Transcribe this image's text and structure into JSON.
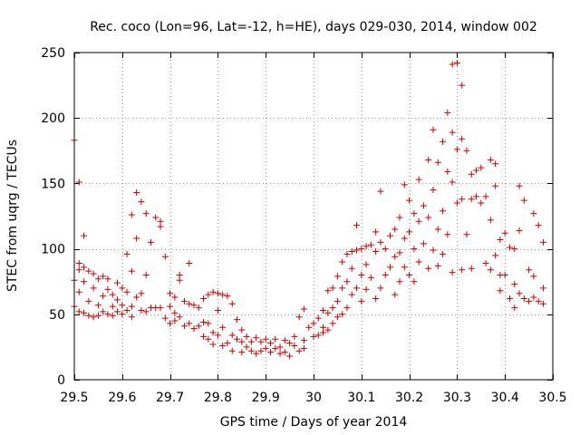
{
  "chart_data": {
    "type": "scatter",
    "title": "Rec. coco (Lon=96, Lat=-12, h=HE), days 029-030, 2014, window 002",
    "xlabel": "GPS time / Days of year 2014",
    "ylabel": "STEC from uqrg / TECUs",
    "xlim": [
      29.5,
      30.5
    ],
    "ylim": [
      0,
      250
    ],
    "x_ticks": [
      29.5,
      29.6,
      29.7,
      29.8,
      29.9,
      30,
      30.1,
      30.2,
      30.3,
      30.4,
      30.5
    ],
    "x_tick_labels": [
      "29.5",
      "29.6",
      "29.7",
      "29.8",
      "29.9",
      "30",
      "30.1",
      "30.2",
      "30.3",
      "30.4",
      "30.5"
    ],
    "y_ticks": [
      0,
      50,
      100,
      150,
      200,
      250
    ],
    "y_tick_labels": [
      "0",
      "50",
      "100",
      "150",
      "200",
      "250"
    ],
    "grid": true,
    "marker": "plus",
    "color": "#cc0000",
    "points": [
      [
        29.5,
        183
      ],
      [
        29.5,
        76
      ],
      [
        29.5,
        56
      ],
      [
        29.51,
        151
      ],
      [
        29.51,
        89
      ],
      [
        29.51,
        84
      ],
      [
        29.51,
        67
      ],
      [
        29.51,
        52
      ],
      [
        29.52,
        110
      ],
      [
        29.52,
        86
      ],
      [
        29.52,
        75
      ],
      [
        29.52,
        51
      ],
      [
        29.53,
        83
      ],
      [
        29.53,
        60
      ],
      [
        29.53,
        49
      ],
      [
        29.54,
        81
      ],
      [
        29.54,
        70
      ],
      [
        29.54,
        48
      ],
      [
        29.55,
        77
      ],
      [
        29.55,
        57
      ],
      [
        29.55,
        49
      ],
      [
        29.56,
        79
      ],
      [
        29.56,
        64
      ],
      [
        29.56,
        52
      ],
      [
        29.57,
        77
      ],
      [
        29.57,
        69
      ],
      [
        29.57,
        50
      ],
      [
        29.58,
        65
      ],
      [
        29.58,
        56
      ],
      [
        29.58,
        49
      ],
      [
        29.59,
        74
      ],
      [
        29.59,
        61
      ],
      [
        29.59,
        52
      ],
      [
        29.6,
        70
      ],
      [
        29.6,
        57
      ],
      [
        29.6,
        50
      ],
      [
        29.61,
        96
      ],
      [
        29.61,
        67
      ],
      [
        29.61,
        53
      ],
      [
        29.62,
        126
      ],
      [
        29.62,
        83
      ],
      [
        29.62,
        56
      ],
      [
        29.62,
        48
      ],
      [
        29.63,
        143
      ],
      [
        29.63,
        108
      ],
      [
        29.63,
        63
      ],
      [
        29.64,
        136
      ],
      [
        29.64,
        66
      ],
      [
        29.64,
        53
      ],
      [
        29.65,
        127
      ],
      [
        29.65,
        80
      ],
      [
        29.65,
        52
      ],
      [
        29.66,
        105
      ],
      [
        29.66,
        55
      ],
      [
        29.67,
        124
      ],
      [
        29.67,
        55
      ],
      [
        29.68,
        121
      ],
      [
        29.68,
        117
      ],
      [
        29.68,
        55
      ],
      [
        29.69,
        94
      ],
      [
        29.69,
        47
      ],
      [
        29.7,
        66
      ],
      [
        29.7,
        56
      ],
      [
        29.7,
        43
      ],
      [
        29.71,
        63
      ],
      [
        29.71,
        51
      ],
      [
        29.71,
        45
      ],
      [
        29.72,
        80
      ],
      [
        29.72,
        76
      ],
      [
        29.72,
        48
      ],
      [
        29.73,
        60
      ],
      [
        29.73,
        41
      ],
      [
        29.74,
        89
      ],
      [
        29.74,
        58
      ],
      [
        29.74,
        43
      ],
      [
        29.75,
        57
      ],
      [
        29.75,
        39
      ],
      [
        29.76,
        55
      ],
      [
        29.76,
        41
      ],
      [
        29.77,
        62
      ],
      [
        29.77,
        44
      ],
      [
        29.77,
        33
      ],
      [
        29.78,
        65
      ],
      [
        29.78,
        43
      ],
      [
        29.78,
        31
      ],
      [
        29.79,
        67
      ],
      [
        29.79,
        36
      ],
      [
        29.79,
        27
      ],
      [
        29.8,
        66
      ],
      [
        29.8,
        53
      ],
      [
        29.8,
        34
      ],
      [
        29.81,
        65
      ],
      [
        29.81,
        40
      ],
      [
        29.81,
        26
      ],
      [
        29.82,
        64
      ],
      [
        29.82,
        28
      ],
      [
        29.83,
        58
      ],
      [
        29.83,
        34
      ],
      [
        29.83,
        22
      ],
      [
        29.84,
        46
      ],
      [
        29.84,
        31
      ],
      [
        29.85,
        38
      ],
      [
        29.85,
        29
      ],
      [
        29.85,
        21
      ],
      [
        29.86,
        33
      ],
      [
        29.86,
        25
      ],
      [
        29.87,
        29
      ],
      [
        29.87,
        22
      ],
      [
        29.88,
        32
      ],
      [
        29.88,
        20
      ],
      [
        29.89,
        29
      ],
      [
        29.89,
        22
      ],
      [
        29.9,
        31
      ],
      [
        29.9,
        24
      ],
      [
        29.91,
        28
      ],
      [
        29.91,
        21
      ],
      [
        29.92,
        31
      ],
      [
        29.92,
        24
      ],
      [
        29.93,
        25
      ],
      [
        29.93,
        20
      ],
      [
        29.94,
        30
      ],
      [
        29.94,
        21
      ],
      [
        29.95,
        28
      ],
      [
        29.95,
        18
      ],
      [
        29.96,
        33
      ],
      [
        29.96,
        26
      ],
      [
        29.97,
        48
      ],
      [
        29.97,
        22
      ],
      [
        29.98,
        54
      ],
      [
        29.98,
        30
      ],
      [
        29.98,
        24
      ],
      [
        29.99,
        40
      ],
      [
        30.0,
        43
      ],
      [
        30.0,
        33
      ],
      [
        30.01,
        47
      ],
      [
        30.01,
        34
      ],
      [
        30.02,
        53
      ],
      [
        30.02,
        40
      ],
      [
        30.02,
        36
      ],
      [
        30.03,
        68
      ],
      [
        30.03,
        51
      ],
      [
        30.03,
        38
      ],
      [
        30.04,
        70
      ],
      [
        30.04,
        55
      ],
      [
        30.04,
        43
      ],
      [
        30.05,
        79
      ],
      [
        30.05,
        60
      ],
      [
        30.05,
        48
      ],
      [
        30.06,
        90
      ],
      [
        30.06,
        70
      ],
      [
        30.06,
        50
      ],
      [
        30.07,
        96
      ],
      [
        30.07,
        75
      ],
      [
        30.07,
        55
      ],
      [
        30.08,
        98
      ],
      [
        30.08,
        85
      ],
      [
        30.08,
        65
      ],
      [
        30.09,
        118
      ],
      [
        30.09,
        99
      ],
      [
        30.09,
        70
      ],
      [
        30.1,
        100
      ],
      [
        30.1,
        80
      ],
      [
        30.1,
        60
      ],
      [
        30.11,
        102
      ],
      [
        30.11,
        88
      ],
      [
        30.11,
        69
      ],
      [
        30.12,
        103
      ],
      [
        30.12,
        78
      ],
      [
        30.13,
        113
      ],
      [
        30.13,
        98
      ],
      [
        30.13,
        62
      ],
      [
        30.14,
        144
      ],
      [
        30.14,
        105
      ],
      [
        30.14,
        70
      ],
      [
        30.15,
        100
      ],
      [
        30.15,
        80
      ],
      [
        30.16,
        110
      ],
      [
        30.16,
        86
      ],
      [
        30.17,
        115
      ],
      [
        30.17,
        94
      ],
      [
        30.17,
        65
      ],
      [
        30.18,
        124
      ],
      [
        30.18,
        97
      ],
      [
        30.18,
        75
      ],
      [
        30.19,
        149
      ],
      [
        30.19,
        108
      ],
      [
        30.19,
        86
      ],
      [
        30.2,
        137
      ],
      [
        30.2,
        113
      ],
      [
        30.2,
        80
      ],
      [
        30.21,
        127
      ],
      [
        30.21,
        100
      ],
      [
        30.21,
        75
      ],
      [
        30.22,
        153
      ],
      [
        30.22,
        121
      ],
      [
        30.22,
        90
      ],
      [
        30.23,
        133
      ],
      [
        30.23,
        104
      ],
      [
        30.24,
        168
      ],
      [
        30.24,
        124
      ],
      [
        30.24,
        85
      ],
      [
        30.25,
        191
      ],
      [
        30.25,
        145
      ],
      [
        30.25,
        99
      ],
      [
        30.26,
        166
      ],
      [
        30.26,
        115
      ],
      [
        30.26,
        87
      ],
      [
        30.27,
        182
      ],
      [
        30.27,
        129
      ],
      [
        30.27,
        96
      ],
      [
        30.28,
        204
      ],
      [
        30.28,
        159
      ],
      [
        30.28,
        111
      ],
      [
        30.29,
        241
      ],
      [
        30.29,
        189
      ],
      [
        30.29,
        151
      ],
      [
        30.29,
        82
      ],
      [
        30.3,
        242
      ],
      [
        30.3,
        176
      ],
      [
        30.3,
        135
      ],
      [
        30.31,
        225
      ],
      [
        30.31,
        184
      ],
      [
        30.31,
        138
      ],
      [
        30.31,
        84
      ],
      [
        30.32,
        175
      ],
      [
        30.32,
        111
      ],
      [
        30.33,
        157
      ],
      [
        30.33,
        138
      ],
      [
        30.33,
        85
      ],
      [
        30.34,
        160
      ],
      [
        30.34,
        140
      ],
      [
        30.35,
        162
      ],
      [
        30.35,
        135
      ],
      [
        30.36,
        140
      ],
      [
        30.36,
        89
      ],
      [
        30.37,
        168
      ],
      [
        30.37,
        122
      ],
      [
        30.37,
        84
      ],
      [
        30.38,
        165
      ],
      [
        30.38,
        148
      ],
      [
        30.38,
        95
      ],
      [
        30.39,
        107
      ],
      [
        30.39,
        80
      ],
      [
        30.39,
        68
      ],
      [
        30.4,
        112
      ],
      [
        30.4,
        80
      ],
      [
        30.41,
        101
      ],
      [
        30.41,
        62
      ],
      [
        30.42,
        100
      ],
      [
        30.42,
        73
      ],
      [
        30.42,
        55
      ],
      [
        30.43,
        148
      ],
      [
        30.43,
        114
      ],
      [
        30.43,
        66
      ],
      [
        30.44,
        137
      ],
      [
        30.44,
        62
      ],
      [
        30.45,
        84
      ],
      [
        30.45,
        60
      ],
      [
        30.46,
        127
      ],
      [
        30.46,
        79
      ],
      [
        30.46,
        63
      ],
      [
        30.47,
        118
      ],
      [
        30.47,
        60
      ],
      [
        30.48,
        105
      ],
      [
        30.48,
        70
      ],
      [
        30.48,
        58
      ]
    ]
  }
}
